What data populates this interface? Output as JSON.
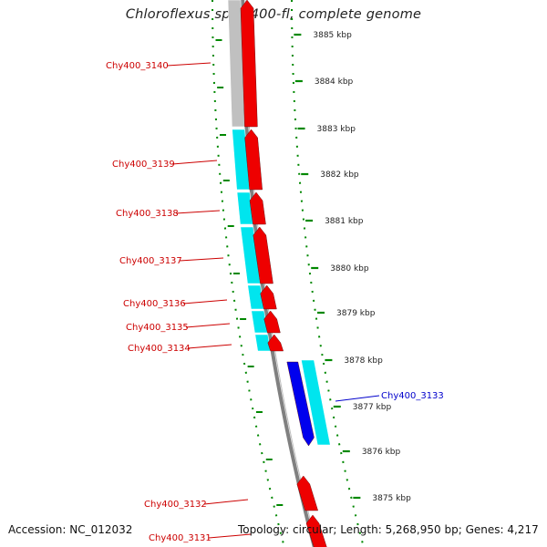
{
  "title": "Chloroflexus sp. Y-400-fl, complete genome",
  "footer": {
    "accession_label": "Accession:",
    "accession": "NC_012032",
    "topology_label": "Topology:",
    "topology": "circular",
    "length_label": "Length:",
    "length": "5,268,950 bp",
    "genes_label": "Genes:",
    "genes": "4,217"
  },
  "scale_unit": "kbp",
  "ticks": [
    3885,
    3884,
    3883,
    3882,
    3881,
    3880,
    3879,
    3878,
    3877,
    3876,
    3875
  ],
  "genes": [
    {
      "name": "Chy400_3140",
      "strand": "-",
      "color": "#ee0000",
      "homolog": "#c0c0c0",
      "labeled": true
    },
    {
      "name": "Chy400_3139",
      "strand": "-",
      "color": "#ee0000",
      "homolog": "#00e5ee",
      "labeled": true
    },
    {
      "name": "Chy400_3138",
      "strand": "-",
      "color": "#ee0000",
      "homolog": "#00e5ee",
      "labeled": true
    },
    {
      "name": "Chy400_3137",
      "strand": "-",
      "color": "#ee0000",
      "homolog": "#00e5ee",
      "labeled": true
    },
    {
      "name": "Chy400_3136",
      "strand": "-",
      "color": "#ee0000",
      "homolog": "#00e5ee",
      "labeled": true
    },
    {
      "name": "Chy400_3135",
      "strand": "-",
      "color": "#ee0000",
      "homolog": "#00e5ee",
      "labeled": true
    },
    {
      "name": "Chy400_3134",
      "strand": "-",
      "color": "#ee0000",
      "homolog": "#00e5ee",
      "labeled": true
    },
    {
      "name": "Chy400_3133",
      "strand": "+",
      "color": "#0000ee",
      "homolog": "#00e5ee",
      "labeled": true
    },
    {
      "name": "Chy400_3132",
      "strand": "-",
      "color": "#ee0000",
      "homolog": null,
      "labeled": true
    },
    {
      "name": "Chy400_3131",
      "strand": "-",
      "color": "#ee0000",
      "homolog": null,
      "labeled": true
    }
  ],
  "colors": {
    "minus_strand": "#ee0000",
    "plus_strand": "#0000ee",
    "homolog_cyan": "#00e5ee",
    "homolog_gray": "#c0c0c0",
    "backbone": "#808080",
    "tick_green": "#008800",
    "label_red": "#cc0000",
    "label_blue": "#0000cc"
  }
}
